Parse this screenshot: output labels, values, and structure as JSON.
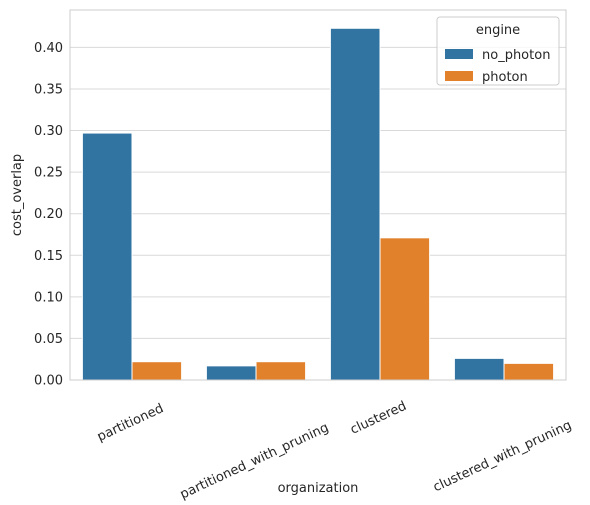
{
  "chart_data": {
    "type": "bar",
    "categories": [
      "partitioned",
      "partitioned_with_pruning",
      "clustered",
      "clustered_with_pruning"
    ],
    "series": [
      {
        "name": "no_photon",
        "values": [
          0.297,
          0.017,
          0.423,
          0.026
        ],
        "color": "#3274a1"
      },
      {
        "name": "photon",
        "values": [
          0.022,
          0.022,
          0.171,
          0.02
        ],
        "color": "#e1812c"
      }
    ],
    "xlabel": "organization",
    "ylabel": "cost_overlap",
    "ylim": [
      0,
      0.445
    ],
    "yticks": [
      0.0,
      0.05,
      0.1,
      0.15,
      0.2,
      0.25,
      0.3,
      0.35,
      0.4
    ],
    "grid": "horizontal",
    "legend": {
      "title": "engine",
      "placement": "top-right"
    }
  }
}
